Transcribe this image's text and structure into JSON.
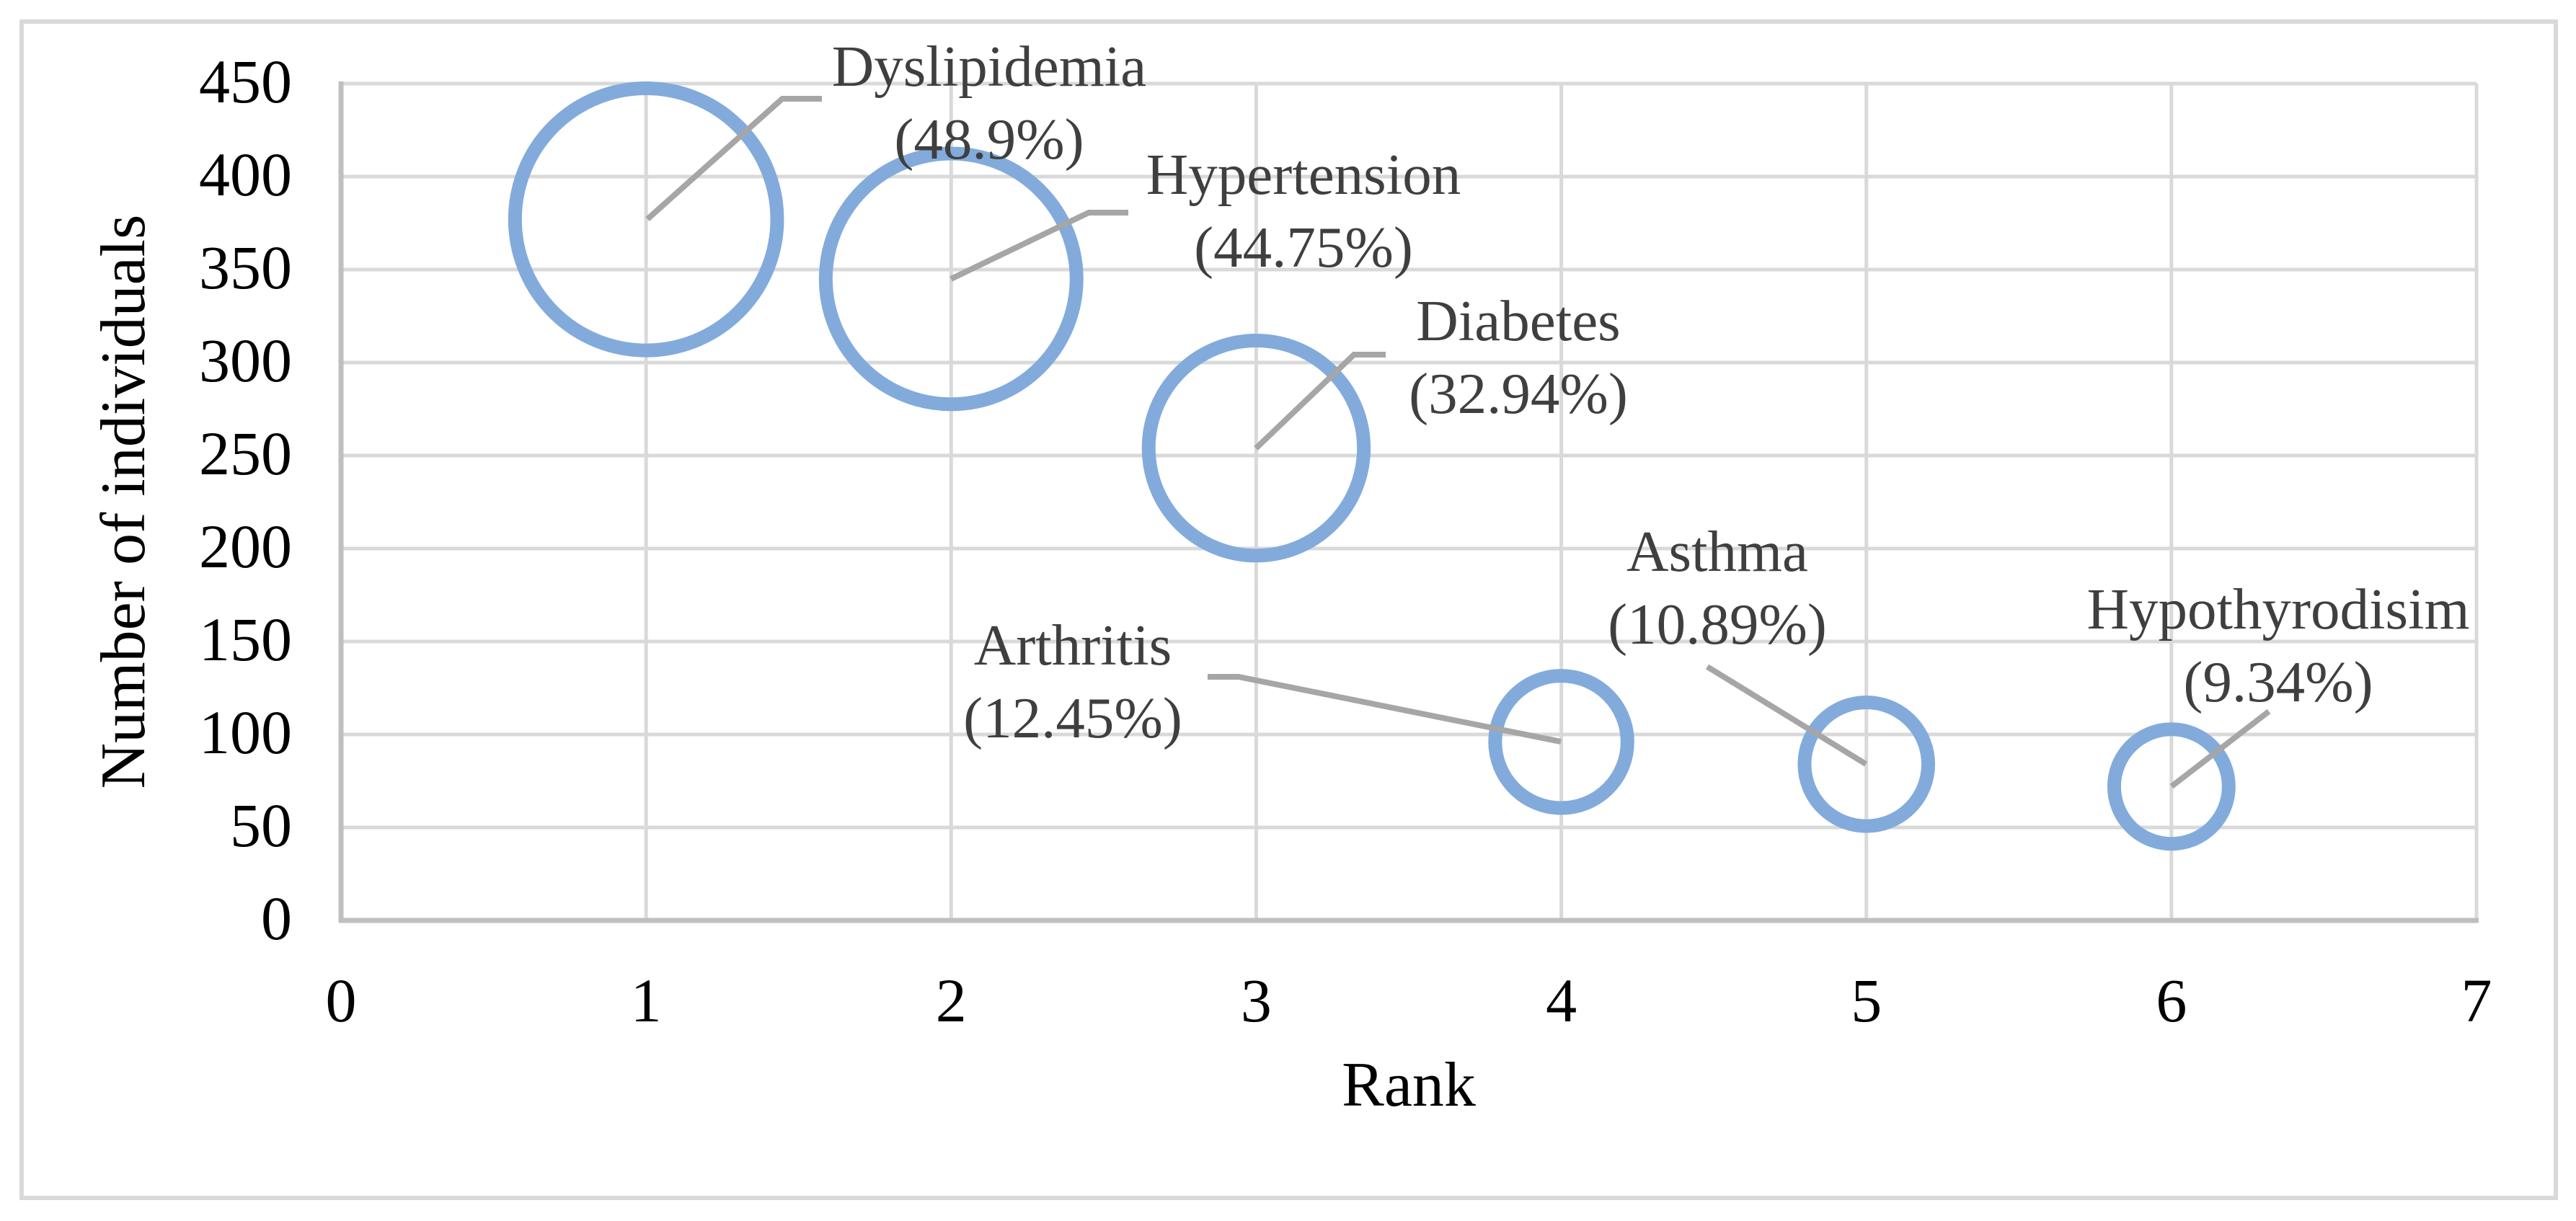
{
  "chart_data": {
    "type": "bubble",
    "title": "",
    "xlabel": "Rank",
    "ylabel": "Number of individuals",
    "xlim": [
      0,
      7
    ],
    "ylim": [
      0,
      450
    ],
    "x_tick_step": 1,
    "y_tick_step": 50,
    "x_ticks": [
      "0",
      "1",
      "2",
      "3",
      "4",
      "5",
      "6",
      "7"
    ],
    "y_ticks": [
      "0",
      "50",
      "100",
      "150",
      "200",
      "250",
      "300",
      "350",
      "400",
      "450"
    ],
    "grid": true,
    "legend": "none",
    "points": [
      {
        "name": "Dyslipidemia",
        "rank": 1,
        "individuals": 377,
        "percent": 48.9,
        "label_line1": "Dyslipidemia",
        "label_line2": "(48.9%)"
      },
      {
        "name": "Hypertension",
        "rank": 2,
        "individuals": 345,
        "percent": 44.75,
        "label_line1": "Hypertension",
        "label_line2": "(44.75%)"
      },
      {
        "name": "Diabetes",
        "rank": 3,
        "individuals": 254,
        "percent": 32.94,
        "label_line1": "Diabetes",
        "label_line2": "(32.94%)"
      },
      {
        "name": "Arthritis",
        "rank": 4,
        "individuals": 96,
        "percent": 12.45,
        "label_line1": "Arthritis",
        "label_line2": "(12.45%)"
      },
      {
        "name": "Asthma",
        "rank": 5,
        "individuals": 84,
        "percent": 10.89,
        "label_line1": "Asthma",
        "label_line2": "(10.89%)"
      },
      {
        "name": "Hypothyrodisim",
        "rank": 6,
        "individuals": 72,
        "percent": 9.34,
        "label_line1": "Hypothyrodisim",
        "label_line2": "(9.34%)"
      }
    ]
  },
  "colors": {
    "bubble_stroke": "#82ABDC",
    "gridline": "#D9D9D9",
    "axis_line": "#BFBFBF",
    "leader_line": "#A6A6A6",
    "data_label_text": "#3F3F3F",
    "axis_text": "#000000",
    "frame": "#D9D9D9",
    "background": "#FFFFFF"
  }
}
